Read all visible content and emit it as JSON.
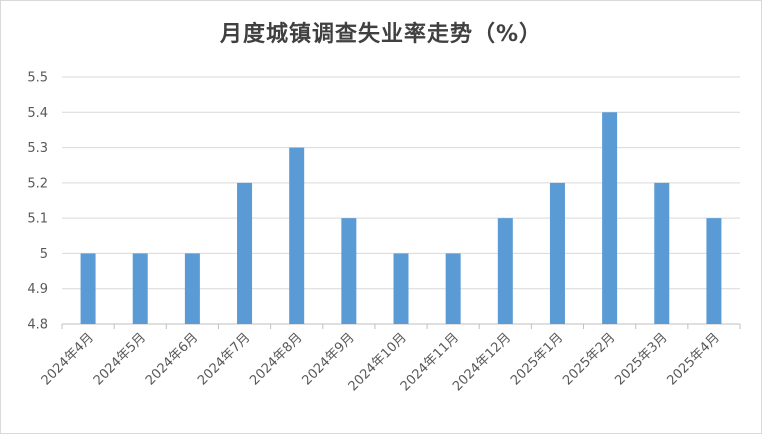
{
  "chart_data": {
    "type": "bar",
    "title": "月度城镇调查失业率走势（%）",
    "categories": [
      "2024年4月",
      "2024年5月",
      "2024年6月",
      "2024年7月",
      "2024年8月",
      "2024年9月",
      "2024年10月",
      "2024年11月",
      "2024年12月",
      "2025年1月",
      "2025年2月",
      "2025年3月",
      "2025年4月"
    ],
    "values": [
      5.0,
      5.0,
      5.0,
      5.2,
      5.3,
      5.1,
      5.0,
      5.0,
      5.1,
      5.2,
      5.4,
      5.2,
      5.1
    ],
    "ylim": [
      4.8,
      5.5
    ],
    "yticks": [
      "4.8",
      "4.9",
      "5",
      "5.1",
      "5.2",
      "5.3",
      "5.4",
      "5.5"
    ],
    "grid": true,
    "bar_color": "#5b9bd5",
    "grid_color": "#d9d9d9"
  }
}
